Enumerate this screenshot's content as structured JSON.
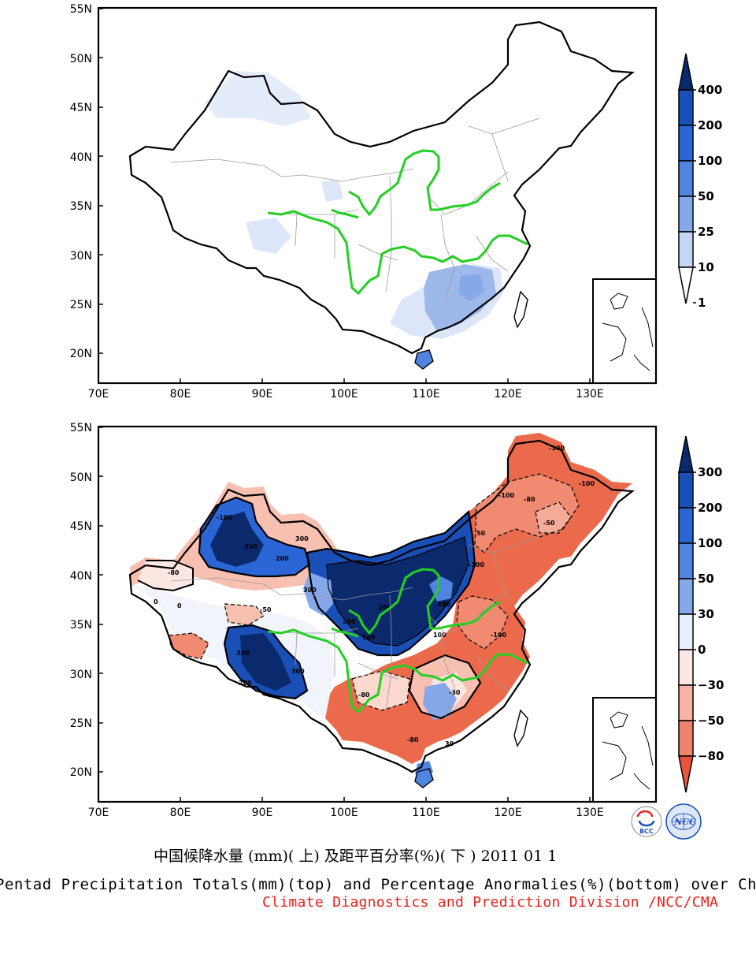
{
  "top_map": {
    "lat_labels": [
      "55N",
      "50N",
      "45N",
      "40N",
      "35N",
      "30N",
      "25N",
      "20N"
    ],
    "lon_labels": [
      "70E",
      "80E",
      "90E",
      "100E",
      "110E",
      "120E",
      "130E"
    ],
    "colorbar_labels": [
      "400",
      "200",
      "100",
      "50",
      "25",
      "10",
      "1"
    ],
    "colorbar_colors": [
      "#0b2a6e",
      "#1a4fb8",
      "#2a66d6",
      "#4f84e0",
      "#84a8ea",
      "#c4d6f5",
      "#ffffff"
    ]
  },
  "bottom_map": {
    "lat_labels": [
      "55N",
      "50N",
      "45N",
      "40N",
      "35N",
      "30N",
      "25N",
      "20N"
    ],
    "lon_labels": [
      "70E",
      "80E",
      "90E",
      "100E",
      "110E",
      "120E",
      "130E"
    ],
    "colorbar_labels": [
      "300",
      "200",
      "100",
      "50",
      "30",
      "0",
      "−30",
      "−50",
      "−80"
    ],
    "colorbar_colors": [
      "#0b2a6e",
      "#1a4fb8",
      "#2a66d6",
      "#4f84e0",
      "#84a8ea",
      "#eaf0fb",
      "#fde7e2",
      "#f7b3a3",
      "#ef826b",
      "#e8543c"
    ],
    "contour_labels": [
      "300",
      "200",
      "100",
      "50",
      "30",
      "0",
      "-30",
      "-50",
      "-80",
      "-100"
    ]
  },
  "logos": {
    "left": "BCC",
    "right": "NCC"
  },
  "caption": {
    "chinese": "中国候降水量 (mm)( 上) 及距平百分率(%)( 下 ) 2011 01 1",
    "english": "Pentad Precipitation Totals(mm)(top) and Percentage Anormalies(%)(bottom) over China",
    "source": "Climate Diagnostics and Prediction Division /NCC/CMA"
  }
}
